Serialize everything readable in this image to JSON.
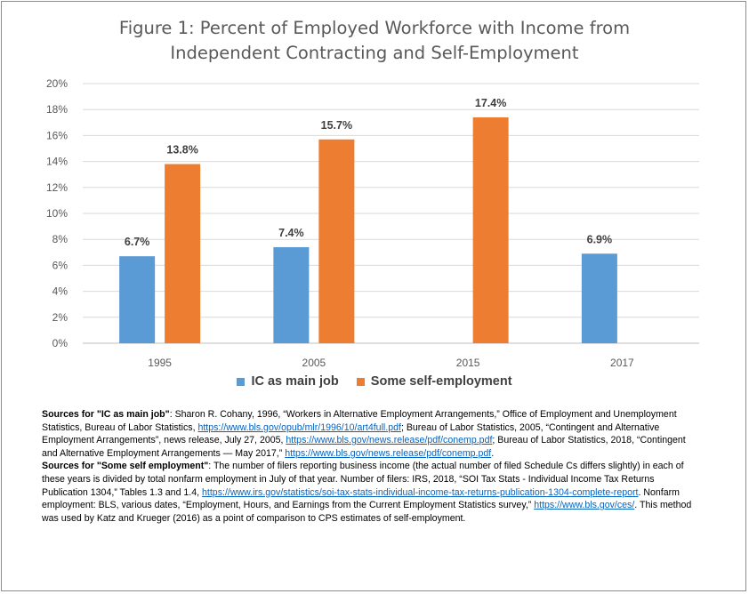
{
  "chart_data": {
    "type": "bar",
    "title": "Figure 1: Percent of Employed Workforce with Income from Independent Contracting and Self-Employment",
    "title_lines": [
      "Figure 1: Percent of Employed Workforce with Income from",
      "Independent Contracting and Self-Employment"
    ],
    "categories": [
      "1995",
      "2005",
      "2015",
      "2017"
    ],
    "series": [
      {
        "name": "IC as main job",
        "color": "#5b9bd5",
        "values": [
          6.7,
          7.4,
          null,
          6.9
        ],
        "labels": [
          "6.7%",
          "7.4%",
          "",
          "6.9%"
        ]
      },
      {
        "name": "Some self-employment",
        "color": "#ed7d31",
        "values": [
          13.8,
          15.7,
          17.4,
          null
        ],
        "labels": [
          "13.8%",
          "15.7%",
          "17.4%",
          ""
        ]
      }
    ],
    "ylim": [
      0,
      20
    ],
    "yticks": [
      "0%",
      "2%",
      "4%",
      "6%",
      "8%",
      "10%",
      "12%",
      "14%",
      "16%",
      "18%",
      "20%"
    ],
    "grid": true,
    "legend_position": "bottom",
    "xlabel": "",
    "ylabel": ""
  },
  "notes": {
    "ic": {
      "heading": "Sources for \"IC as main job\"",
      "text1": ": Sharon R. Cohany, 1996, “Workers in Alternative Employment Arrangements,” Office of Employment and Unemployment Statistics, Bureau of Labor Statistics, ",
      "link1": "https://www.bls.gov/opub/mlr/1996/10/art4full.pdf",
      "text2": ";  Bureau of Labor Statistics, 2005, “Contingent and Alternative Employment Arrangements”, news release, July 27, 2005, ",
      "link2": "https://www.bls.gov/news.release/pdf/conemp.pdf",
      "text3": ";  Bureau of Labor Statistics, 2018, “Contingent and Alternative Employment Arrangements — May 2017,” ",
      "link3": "https://www.bls.gov/news.release/pdf/conemp.pdf",
      "text4": "."
    },
    "se": {
      "heading": "Sources for \"Some self employment\"",
      "text1": ": The number of filers reporting business income (the actual number of filed Schedule Cs differs slightly) in each of these years is divided by total nonfarm employment in July of that year. Number of filers: IRS, 2018, “SOI Tax Stats - Individual Income Tax Returns Publication 1304,” Tables 1.3 and 1.4, ",
      "link1": "https://www.irs.gov/statistics/soi-tax-stats-individual-income-tax-returns-publication-1304-complete-report",
      "text2": ". Nonfarm employment: BLS, various dates, “Employment, Hours, and Earnings from the Current Employment Statistics survey,” ",
      "link2": "https://www.bls.gov/ces/",
      "text3": ".  This method was used by Katz and Krueger (2016) as a point of comparison to CPS estimates of self-employment."
    }
  }
}
